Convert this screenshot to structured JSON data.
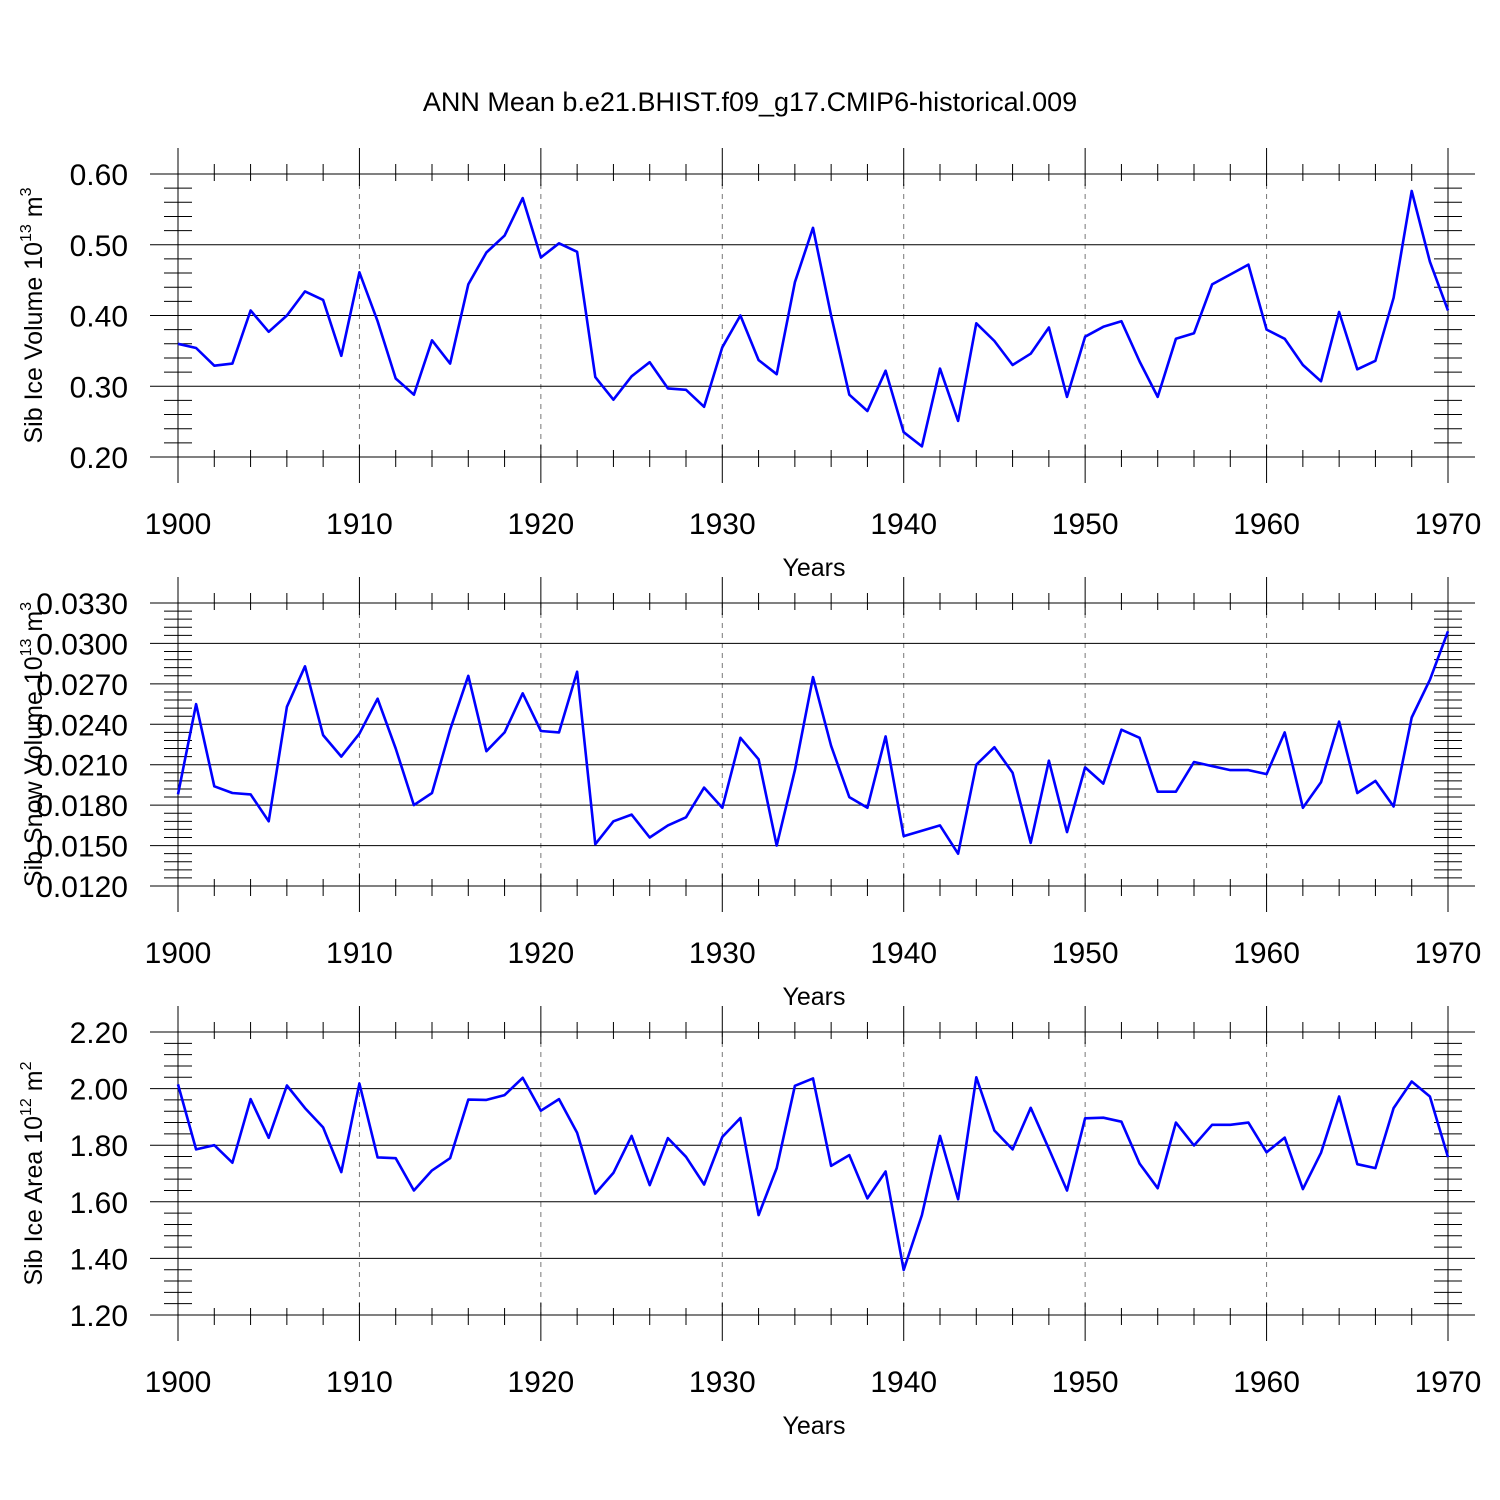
{
  "title": "ANN Mean b.e21.BHIST.f09_g17.CMIP6-historical.009",
  "chart_data": [
    {
      "type": "line",
      "ylabel": "Sib Ice Volume 10",
      "ylabel_exp": "13",
      "ylabel_unit": " m",
      "ylabel_unit_exp": "3",
      "xlabel": "Years",
      "xlim": [
        1900,
        1970
      ],
      "ylim": [
        0.2,
        0.6
      ],
      "yticks": [
        "0.20",
        "0.30",
        "0.40",
        "0.50",
        "0.60"
      ],
      "xticks": [
        "1900",
        "1910",
        "1920",
        "1930",
        "1940",
        "1950",
        "1960",
        "1970"
      ],
      "grid": "vertical dashed at decades",
      "line_color": "#0000ff",
      "x": [
        1900,
        1901,
        1902,
        1903,
        1904,
        1905,
        1906,
        1907,
        1908,
        1909,
        1910,
        1911,
        1912,
        1913,
        1914,
        1915,
        1916,
        1917,
        1918,
        1919,
        1920,
        1921,
        1922,
        1923,
        1924,
        1925,
        1926,
        1927,
        1928,
        1929,
        1930,
        1931,
        1932,
        1933,
        1934,
        1935,
        1936,
        1937,
        1938,
        1939,
        1940,
        1941,
        1942,
        1943,
        1944,
        1945,
        1946,
        1947,
        1948,
        1949,
        1950,
        1951,
        1952,
        1953,
        1954,
        1955,
        1956,
        1957,
        1958,
        1959,
        1960,
        1961,
        1962,
        1963,
        1964,
        1965,
        1966,
        1967,
        1968,
        1969,
        1970
      ],
      "values": [
        0.36,
        0.354,
        0.329,
        0.332,
        0.407,
        0.377,
        0.4,
        0.434,
        0.422,
        0.343,
        0.461,
        0.392,
        0.311,
        0.288,
        0.365,
        0.332,
        0.444,
        0.489,
        0.513,
        0.566,
        0.482,
        0.502,
        0.49,
        0.313,
        0.281,
        0.314,
        0.334,
        0.297,
        0.295,
        0.271,
        0.355,
        0.4,
        0.337,
        0.317,
        0.447,
        0.524,
        0.4,
        0.288,
        0.265,
        0.322,
        0.235,
        0.215,
        0.325,
        0.251,
        0.389,
        0.364,
        0.33,
        0.346,
        0.383,
        0.285,
        0.37,
        0.384,
        0.392,
        0.335,
        0.285,
        0.367,
        0.375,
        0.444,
        0.458,
        0.472,
        0.38,
        0.367,
        0.33,
        0.307,
        0.405,
        0.324,
        0.336,
        0.425,
        0.576,
        0.476,
        0.407
      ]
    },
    {
      "type": "line",
      "ylabel": "Sib Snow Volume 10",
      "ylabel_exp": "13",
      "ylabel_unit": " m",
      "ylabel_unit_exp": "3",
      "xlabel": "Years",
      "xlim": [
        1900,
        1970
      ],
      "ylim": [
        0.012,
        0.033
      ],
      "yticks": [
        "0.0120",
        "0.0150",
        "0.0180",
        "0.0210",
        "0.0240",
        "0.0270",
        "0.0300",
        "0.0330"
      ],
      "xticks": [
        "1900",
        "1910",
        "1920",
        "1930",
        "1940",
        "1950",
        "1960",
        "1970"
      ],
      "grid": "vertical dashed at decades",
      "line_color": "#0000ff",
      "x": [
        1900,
        1901,
        1902,
        1903,
        1904,
        1905,
        1906,
        1907,
        1908,
        1909,
        1910,
        1911,
        1912,
        1913,
        1914,
        1915,
        1916,
        1917,
        1918,
        1919,
        1920,
        1921,
        1922,
        1923,
        1924,
        1925,
        1926,
        1927,
        1928,
        1929,
        1930,
        1931,
        1932,
        1933,
        1934,
        1935,
        1936,
        1937,
        1938,
        1939,
        1940,
        1941,
        1942,
        1943,
        1944,
        1945,
        1946,
        1947,
        1948,
        1949,
        1950,
        1951,
        1952,
        1953,
        1954,
        1955,
        1956,
        1957,
        1958,
        1959,
        1960,
        1961,
        1962,
        1963,
        1964,
        1965,
        1966,
        1967,
        1968,
        1969,
        1970
      ],
      "values": [
        0.0188,
        0.0255,
        0.0194,
        0.0189,
        0.0188,
        0.0168,
        0.0253,
        0.0283,
        0.0232,
        0.0216,
        0.0233,
        0.0259,
        0.0222,
        0.018,
        0.0189,
        0.0236,
        0.0276,
        0.022,
        0.0234,
        0.0263,
        0.0235,
        0.0234,
        0.0279,
        0.0151,
        0.0168,
        0.0173,
        0.0156,
        0.0165,
        0.0171,
        0.0193,
        0.0178,
        0.023,
        0.0214,
        0.015,
        0.0206,
        0.0275,
        0.0224,
        0.0186,
        0.0178,
        0.0231,
        0.0157,
        0.0161,
        0.0165,
        0.0144,
        0.021,
        0.0223,
        0.0204,
        0.0152,
        0.0213,
        0.016,
        0.0208,
        0.0196,
        0.0236,
        0.023,
        0.019,
        0.019,
        0.0212,
        0.0209,
        0.0206,
        0.0206,
        0.0203,
        0.0234,
        0.0178,
        0.0197,
        0.0242,
        0.0189,
        0.0198,
        0.0179,
        0.0245,
        0.0273,
        0.0309
      ]
    },
    {
      "type": "line",
      "ylabel": "Sib Ice Area 10",
      "ylabel_exp": "12",
      "ylabel_unit": " m",
      "ylabel_unit_exp": "2",
      "xlabel": "Years",
      "xlim": [
        1900,
        1970
      ],
      "ylim": [
        1.2,
        2.2
      ],
      "yticks": [
        "1.20",
        "1.40",
        "1.60",
        "1.80",
        "2.00",
        "2.20"
      ],
      "xticks": [
        "1900",
        "1910",
        "1920",
        "1930",
        "1940",
        "1950",
        "1960",
        "1970"
      ],
      "grid": "vertical dashed at decades",
      "line_color": "#0000ff",
      "x": [
        1900,
        1901,
        1902,
        1903,
        1904,
        1905,
        1906,
        1907,
        1908,
        1909,
        1910,
        1911,
        1912,
        1913,
        1914,
        1915,
        1916,
        1917,
        1918,
        1919,
        1920,
        1921,
        1922,
        1923,
        1924,
        1925,
        1926,
        1927,
        1928,
        1929,
        1930,
        1931,
        1932,
        1933,
        1934,
        1935,
        1936,
        1937,
        1938,
        1939,
        1940,
        1941,
        1942,
        1943,
        1944,
        1945,
        1946,
        1947,
        1948,
        1949,
        1950,
        1951,
        1952,
        1953,
        1954,
        1955,
        1956,
        1957,
        1958,
        1959,
        1960,
        1961,
        1962,
        1963,
        1964,
        1965,
        1966,
        1967,
        1968,
        1969,
        1970
      ],
      "values": [
        2.015,
        1.785,
        1.8,
        1.738,
        1.963,
        1.826,
        2.011,
        1.931,
        1.863,
        1.705,
        2.018,
        1.757,
        1.754,
        1.64,
        1.711,
        1.754,
        1.961,
        1.96,
        1.977,
        2.038,
        1.922,
        1.963,
        1.844,
        1.629,
        1.702,
        1.833,
        1.659,
        1.825,
        1.759,
        1.661,
        1.829,
        1.896,
        1.553,
        1.719,
        2.01,
        2.036,
        1.727,
        1.765,
        1.612,
        1.707,
        1.359,
        1.553,
        1.833,
        1.609,
        2.04,
        1.852,
        1.785,
        1.932,
        1.787,
        1.64,
        1.895,
        1.897,
        1.883,
        1.735,
        1.648,
        1.88,
        1.799,
        1.872,
        1.872,
        1.88,
        1.775,
        1.827,
        1.645,
        1.773,
        1.972,
        1.733,
        1.719,
        1.931,
        2.025,
        1.972,
        1.758
      ]
    }
  ]
}
